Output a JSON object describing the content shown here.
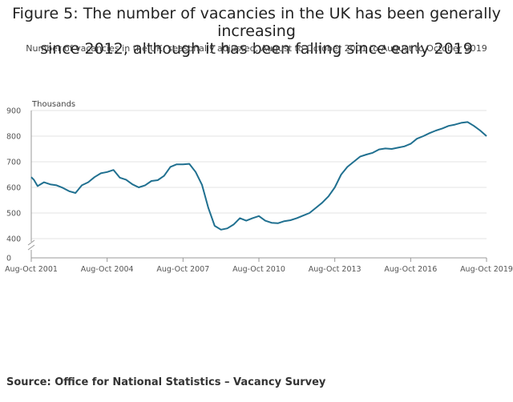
{
  "title_lines": [
    "Figure 5: The number of vacancies in the UK has been generally increasing",
    "since 2012, although it has been falling since early 2019"
  ],
  "subtitle": "Number of vacancies in the UK, seasonally adjusted, August to October 2001 to August to October 2019",
  "source": "Source: Office for National Statistics – Vacancy Survey",
  "chart_data": {
    "type": "line",
    "ylabel": "Thousands",
    "xlabel": "",
    "y_ticks": [
      "900",
      "800",
      "700",
      "600",
      "500",
      "400",
      "0"
    ],
    "y_tick_values": [
      900,
      800,
      700,
      600,
      500,
      400,
      0
    ],
    "axis_break": true,
    "ylim": [
      0,
      900
    ],
    "x_tick_labels": [
      "Aug-Oct 2001",
      "Aug-Oct 2004",
      "Aug-Oct 2007",
      "Aug-Oct 2010",
      "Aug-Oct 2013",
      "Aug-Oct 2016",
      "Aug-Oct 2019"
    ],
    "x_tick_years": [
      2001,
      2004,
      2007,
      2010,
      2013,
      2016,
      2019
    ],
    "xlim": [
      2001,
      2019
    ],
    "grid": true,
    "line_color": "#207090",
    "series": [
      {
        "x": [
          2001.0,
          2001.1,
          2001.25,
          2001.5,
          2001.75,
          2002.0,
          2002.25,
          2002.5,
          2002.75,
          2003.0,
          2003.25,
          2003.5,
          2003.75,
          2004.0,
          2004.25,
          2004.5,
          2004.75,
          2005.0,
          2005.25,
          2005.5,
          2005.75,
          2006.0,
          2006.25,
          2006.5,
          2006.75,
          2007.0,
          2007.25,
          2007.5,
          2007.75,
          2008.0,
          2008.25,
          2008.5,
          2008.75,
          2009.0,
          2009.25,
          2009.5,
          2009.75,
          2010.0,
          2010.25,
          2010.5,
          2010.75,
          2011.0,
          2011.25,
          2011.5,
          2011.75,
          2012.0,
          2012.25,
          2012.5,
          2012.75,
          2013.0,
          2013.25,
          2013.5,
          2013.75,
          2014.0,
          2014.25,
          2014.5,
          2014.75,
          2015.0,
          2015.25,
          2015.5,
          2015.75,
          2016.0,
          2016.25,
          2016.5,
          2016.75,
          2017.0,
          2017.25,
          2017.5,
          2017.75,
          2018.0,
          2018.25,
          2018.5,
          2018.75,
          2019.0
        ],
        "y": [
          640,
          630,
          605,
          620,
          612,
          608,
          598,
          585,
          578,
          608,
          620,
          640,
          655,
          660,
          668,
          638,
          630,
          612,
          600,
          608,
          625,
          628,
          645,
          680,
          690,
          690,
          692,
          660,
          610,
          520,
          450,
          435,
          440,
          455,
          480,
          470,
          480,
          488,
          470,
          462,
          460,
          468,
          472,
          480,
          490,
          500,
          520,
          540,
          565,
          600,
          650,
          680,
          700,
          720,
          728,
          735,
          748,
          752,
          750,
          755,
          760,
          770,
          790,
          800,
          812,
          822,
          830,
          840,
          845,
          852,
          855,
          840,
          822,
          800
        ]
      }
    ]
  }
}
